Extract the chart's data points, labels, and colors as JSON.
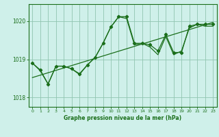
{
  "title": "Graphe pression niveau de la mer (hPa)",
  "bg_color": "#cff0ea",
  "line_color": "#1a6e1a",
  "grid_color": "#90c4b0",
  "x_ticks": [
    0,
    1,
    2,
    3,
    4,
    5,
    6,
    7,
    8,
    9,
    10,
    11,
    12,
    13,
    14,
    15,
    16,
    17,
    18,
    19,
    20,
    21,
    22,
    23
  ],
  "ylim": [
    1017.75,
    1020.45
  ],
  "yticks": [
    1018,
    1019,
    1020
  ],
  "series1_x": [
    0,
    1,
    2,
    3,
    4,
    5,
    6,
    7,
    8,
    9,
    10,
    11,
    12,
    13,
    14,
    15,
    16,
    17,
    18,
    19,
    20,
    21,
    22,
    23
  ],
  "series1_y": [
    1018.9,
    1018.72,
    1018.35,
    1018.82,
    1018.82,
    1018.75,
    1018.62,
    1018.85,
    1019.05,
    1019.42,
    1019.85,
    1020.12,
    1020.12,
    1019.42,
    1019.42,
    1019.38,
    1019.22,
    1019.65,
    1019.18,
    1019.18,
    1019.87,
    1019.92,
    1019.92,
    1019.92
  ],
  "series2_x": [
    0,
    1,
    2,
    3,
    4,
    5,
    6,
    7,
    8,
    9,
    10,
    11,
    12,
    13,
    14,
    15,
    16,
    17,
    18,
    19,
    20,
    21,
    22,
    23
  ],
  "series2_y": [
    1018.9,
    1018.7,
    1018.35,
    1018.82,
    1018.82,
    1018.75,
    1018.6,
    1018.85,
    1019.05,
    1019.42,
    1019.85,
    1020.12,
    1020.07,
    1019.38,
    1019.42,
    1019.32,
    1019.12,
    1019.6,
    1019.12,
    1019.22,
    1019.82,
    1019.92,
    1019.87,
    1019.87
  ],
  "trend_x": [
    0,
    23
  ],
  "trend_y": [
    1018.52,
    1019.97
  ]
}
